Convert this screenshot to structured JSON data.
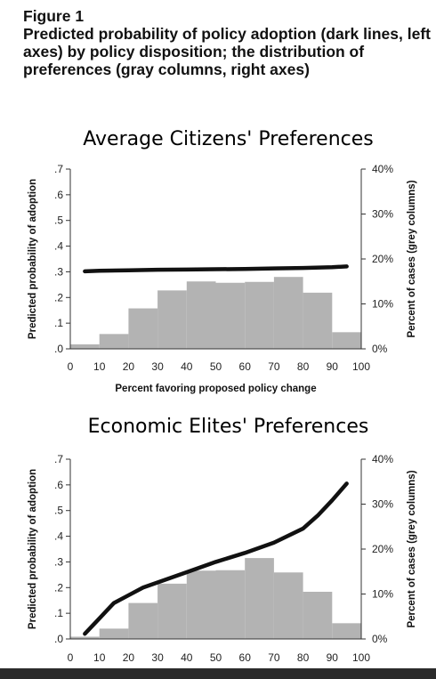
{
  "figure": {
    "label": "Figure 1",
    "description": "Predicted probability of policy adoption (dark lines, left axes) by policy disposition; the distribution of preferences (gray columns, right axes)"
  },
  "colors": {
    "line": "#111111",
    "bars": "#b3b3b3",
    "axis": "#333333"
  },
  "chart_data": [
    {
      "type": "bar+line",
      "title": "Average Citizens' Preferences",
      "xlabel": "Percent favoring proposed policy change",
      "ylabel_left": "Predicted probability of adoption",
      "ylabel_right": "Percent of cases (grey columns)",
      "xlim": [
        0,
        100
      ],
      "xticks": [
        "0",
        "10",
        "20",
        "30",
        "40",
        "50",
        "60",
        "70",
        "80",
        "90",
        "100"
      ],
      "ylim_left": [
        0,
        0.7
      ],
      "yticks_left": [
        ".0",
        ".1",
        ".2",
        ".3",
        ".4",
        ".5",
        ".6",
        ".7"
      ],
      "ylim_right": [
        0,
        40
      ],
      "yticks_right": [
        "0%",
        "10%",
        "20%",
        "30%",
        "40%"
      ],
      "bars": {
        "bin_edges": [
          0,
          10,
          20,
          30,
          40,
          50,
          60,
          70,
          80,
          90,
          100
        ],
        "values": [
          1,
          3.3,
          9,
          13,
          15,
          14.7,
          14.9,
          16,
          12.5,
          3.7
        ]
      },
      "line": {
        "x": [
          5,
          10,
          20,
          30,
          40,
          50,
          60,
          70,
          80,
          90,
          95
        ],
        "y": [
          0.302,
          0.304,
          0.306,
          0.308,
          0.309,
          0.31,
          0.311,
          0.313,
          0.315,
          0.318,
          0.321
        ]
      },
      "grid": false
    },
    {
      "type": "bar+line",
      "title": "Economic Elites' Preferences",
      "xlabel": "",
      "ylabel_left": "Predicted probability of adoption",
      "ylabel_right": "Percent of cases (grey columns)",
      "xlim": [
        0,
        100
      ],
      "xticks": [
        "0",
        "10",
        "20",
        "30",
        "40",
        "50",
        "60",
        "70",
        "80",
        "90",
        "100"
      ],
      "ylim_left": [
        0,
        0.7
      ],
      "yticks_left": [
        ".0",
        ".1",
        ".2",
        ".3",
        ".4",
        ".5",
        ".6",
        ".7"
      ],
      "ylim_right": [
        0,
        40
      ],
      "yticks_right": [
        "0%",
        "10%",
        "20%",
        "30%",
        "40%"
      ],
      "bars": {
        "bin_edges": [
          0,
          10,
          20,
          30,
          40,
          50,
          60,
          70,
          80,
          90,
          100
        ],
        "values": [
          0.5,
          2.3,
          8,
          12.3,
          15.2,
          15.3,
          18,
          14.8,
          10.5,
          3.5
        ]
      },
      "line": {
        "x": [
          5,
          10,
          15,
          20,
          25,
          30,
          40,
          50,
          60,
          70,
          80,
          85,
          90,
          95
        ],
        "y": [
          0.02,
          0.08,
          0.14,
          0.17,
          0.2,
          0.22,
          0.26,
          0.3,
          0.335,
          0.375,
          0.43,
          0.48,
          0.54,
          0.605
        ]
      },
      "grid": false
    }
  ]
}
